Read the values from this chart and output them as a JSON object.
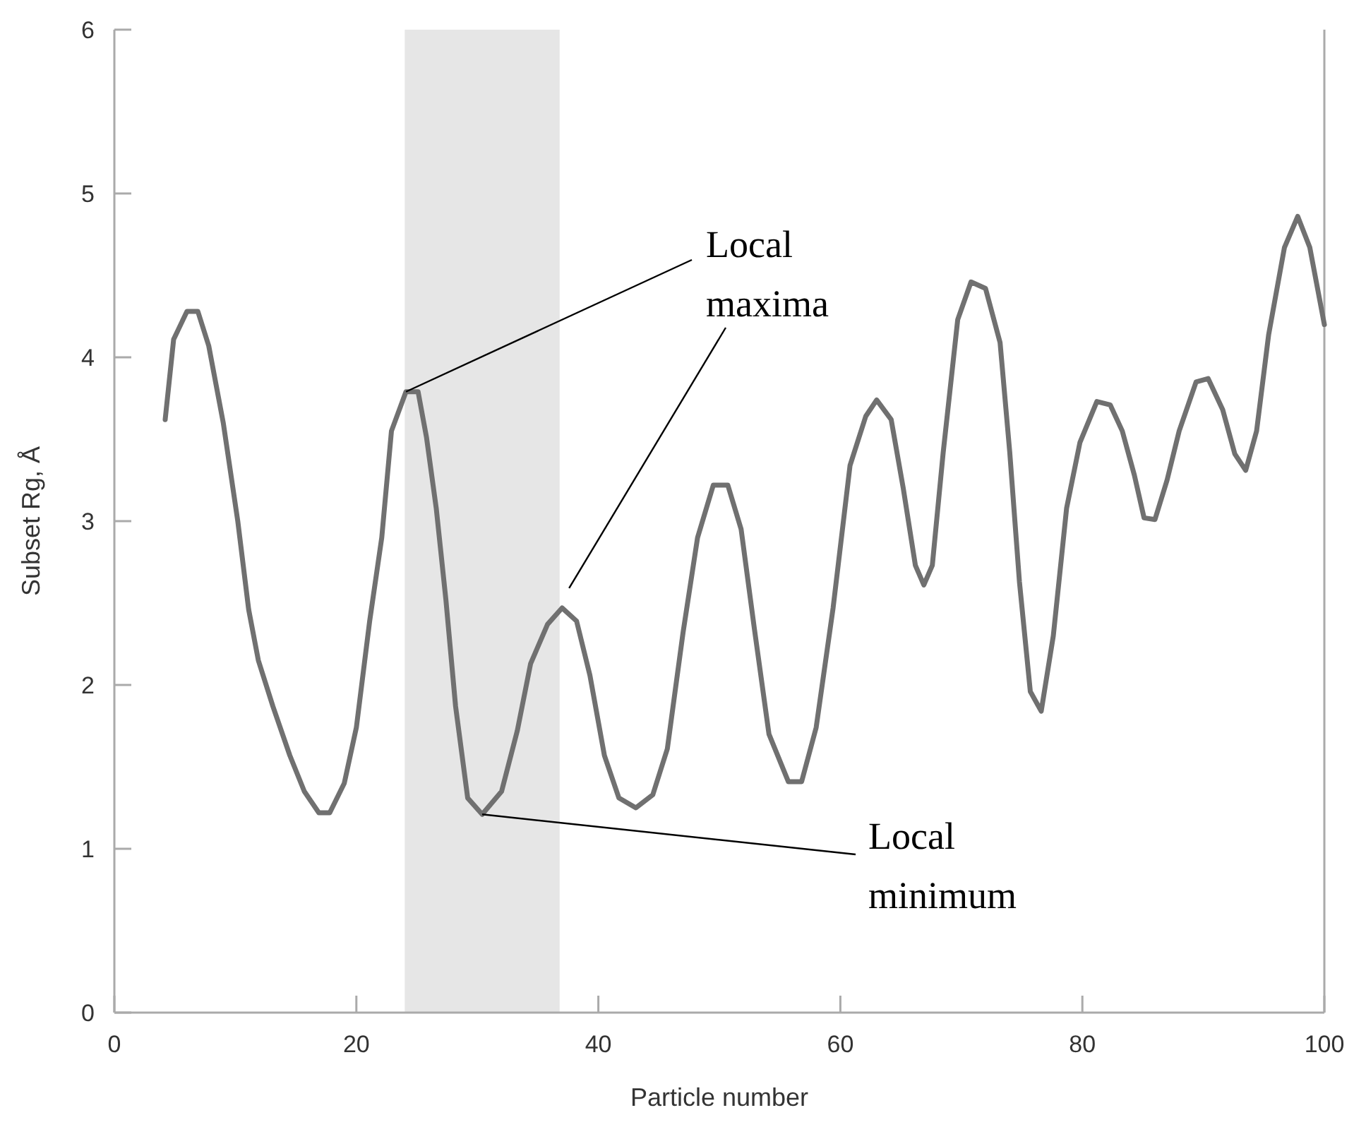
{
  "chart_data": {
    "type": "line",
    "xlabel": "Particle number",
    "ylabel": "Subset Rg, Å",
    "xlim": [
      0,
      100
    ],
    "ylim": [
      0,
      6
    ],
    "xticks": [
      0,
      20,
      40,
      60,
      80,
      100
    ],
    "yticks": [
      0,
      1,
      2,
      3,
      4,
      5,
      6
    ],
    "grid": false,
    "marker": "none",
    "line_style": "solid",
    "bands": [
      {
        "axis": "x",
        "from": 24,
        "to": 36.8,
        "color": "#e6e6e6"
      }
    ],
    "annotations": [
      {
        "text": "Local maxima",
        "x": 24.1,
        "y": 3.79
      },
      {
        "text": "Local minimum",
        "x": 30.4,
        "y": 1.21
      }
    ],
    "series": [
      {
        "color": "#707070",
        "x": [
          4.2,
          4.9,
          6.0,
          6.9,
          7.8,
          9.0,
          10.2,
          11.1,
          11.9,
          13.1,
          14.5,
          15.7,
          16.9,
          17.8,
          19.0,
          20.0,
          21.1,
          22.1,
          22.9,
          24.1,
          25.1,
          25.8,
          26.6,
          27.4,
          28.2,
          29.2,
          30.4,
          32.0,
          33.3,
          34.4,
          35.8,
          37.0,
          38.2,
          39.3,
          40.5,
          41.7,
          43.1,
          44.5,
          45.7,
          47.0,
          48.2,
          49.5,
          50.7,
          51.8,
          52.9,
          54.1,
          55.7,
          56.8,
          58.0,
          59.4,
          60.8,
          62.1,
          63.0,
          64.2,
          65.2,
          66.2,
          66.9,
          67.6,
          68.5,
          69.7,
          70.8,
          72.0,
          73.2,
          74.0,
          74.8,
          75.7,
          76.6,
          77.6,
          78.7,
          79.8,
          81.2,
          82.3,
          83.3,
          84.3,
          85.1,
          86.0,
          87.0,
          88.0,
          89.4,
          90.4,
          91.6,
          92.6,
          93.5,
          94.4,
          95.4,
          96.7,
          97.8,
          98.8,
          100
        ],
        "values": [
          3.62,
          4.11,
          4.28,
          4.28,
          4.07,
          3.6,
          3.0,
          2.46,
          2.15,
          1.87,
          1.57,
          1.35,
          1.22,
          1.22,
          1.4,
          1.74,
          2.39,
          2.9,
          3.55,
          3.79,
          3.79,
          3.51,
          3.08,
          2.52,
          1.87,
          1.31,
          1.21,
          1.35,
          1.72,
          2.13,
          2.37,
          2.47,
          2.39,
          2.06,
          1.57,
          1.31,
          1.25,
          1.33,
          1.61,
          2.32,
          2.9,
          3.22,
          3.22,
          2.95,
          2.34,
          1.7,
          1.41,
          1.41,
          1.74,
          2.47,
          3.34,
          3.64,
          3.74,
          3.62,
          3.2,
          2.73,
          2.61,
          2.73,
          3.42,
          4.23,
          4.46,
          4.42,
          4.09,
          3.42,
          2.63,
          1.96,
          1.84,
          2.3,
          3.08,
          3.48,
          3.73,
          3.71,
          3.55,
          3.28,
          3.02,
          3.01,
          3.25,
          3.55,
          3.85,
          3.87,
          3.68,
          3.41,
          3.31,
          3.55,
          4.14,
          4.67,
          4.86,
          4.67,
          4.2
        ]
      }
    ]
  }
}
